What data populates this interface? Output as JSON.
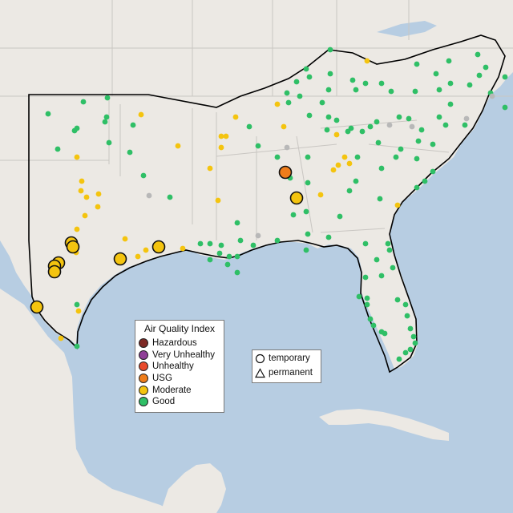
{
  "legend": {
    "title": "Air Quality Index",
    "categories": [
      {
        "label": "Hazardous",
        "color": "#7e2a26"
      },
      {
        "label": "Very Unhealthy",
        "color": "#8f3f97"
      },
      {
        "label": "Unhealthy",
        "color": "#e84a2c"
      },
      {
        "label": "USG",
        "color": "#ef7d1a"
      },
      {
        "label": "Moderate",
        "color": "#f4c40f"
      },
      {
        "label": "Good",
        "color": "#2fbf66"
      }
    ],
    "no_data_color": "#b8b8b8"
  },
  "monitor_types": [
    {
      "label": "temporary",
      "icon": "circle-icon"
    },
    {
      "label": "permanent",
      "icon": "triangle-icon"
    }
  ],
  "colors": {
    "ocean": "#b7cde2",
    "land": "#ece9e4",
    "border": "#c9c6c2",
    "region_outline": "#000000"
  }
}
